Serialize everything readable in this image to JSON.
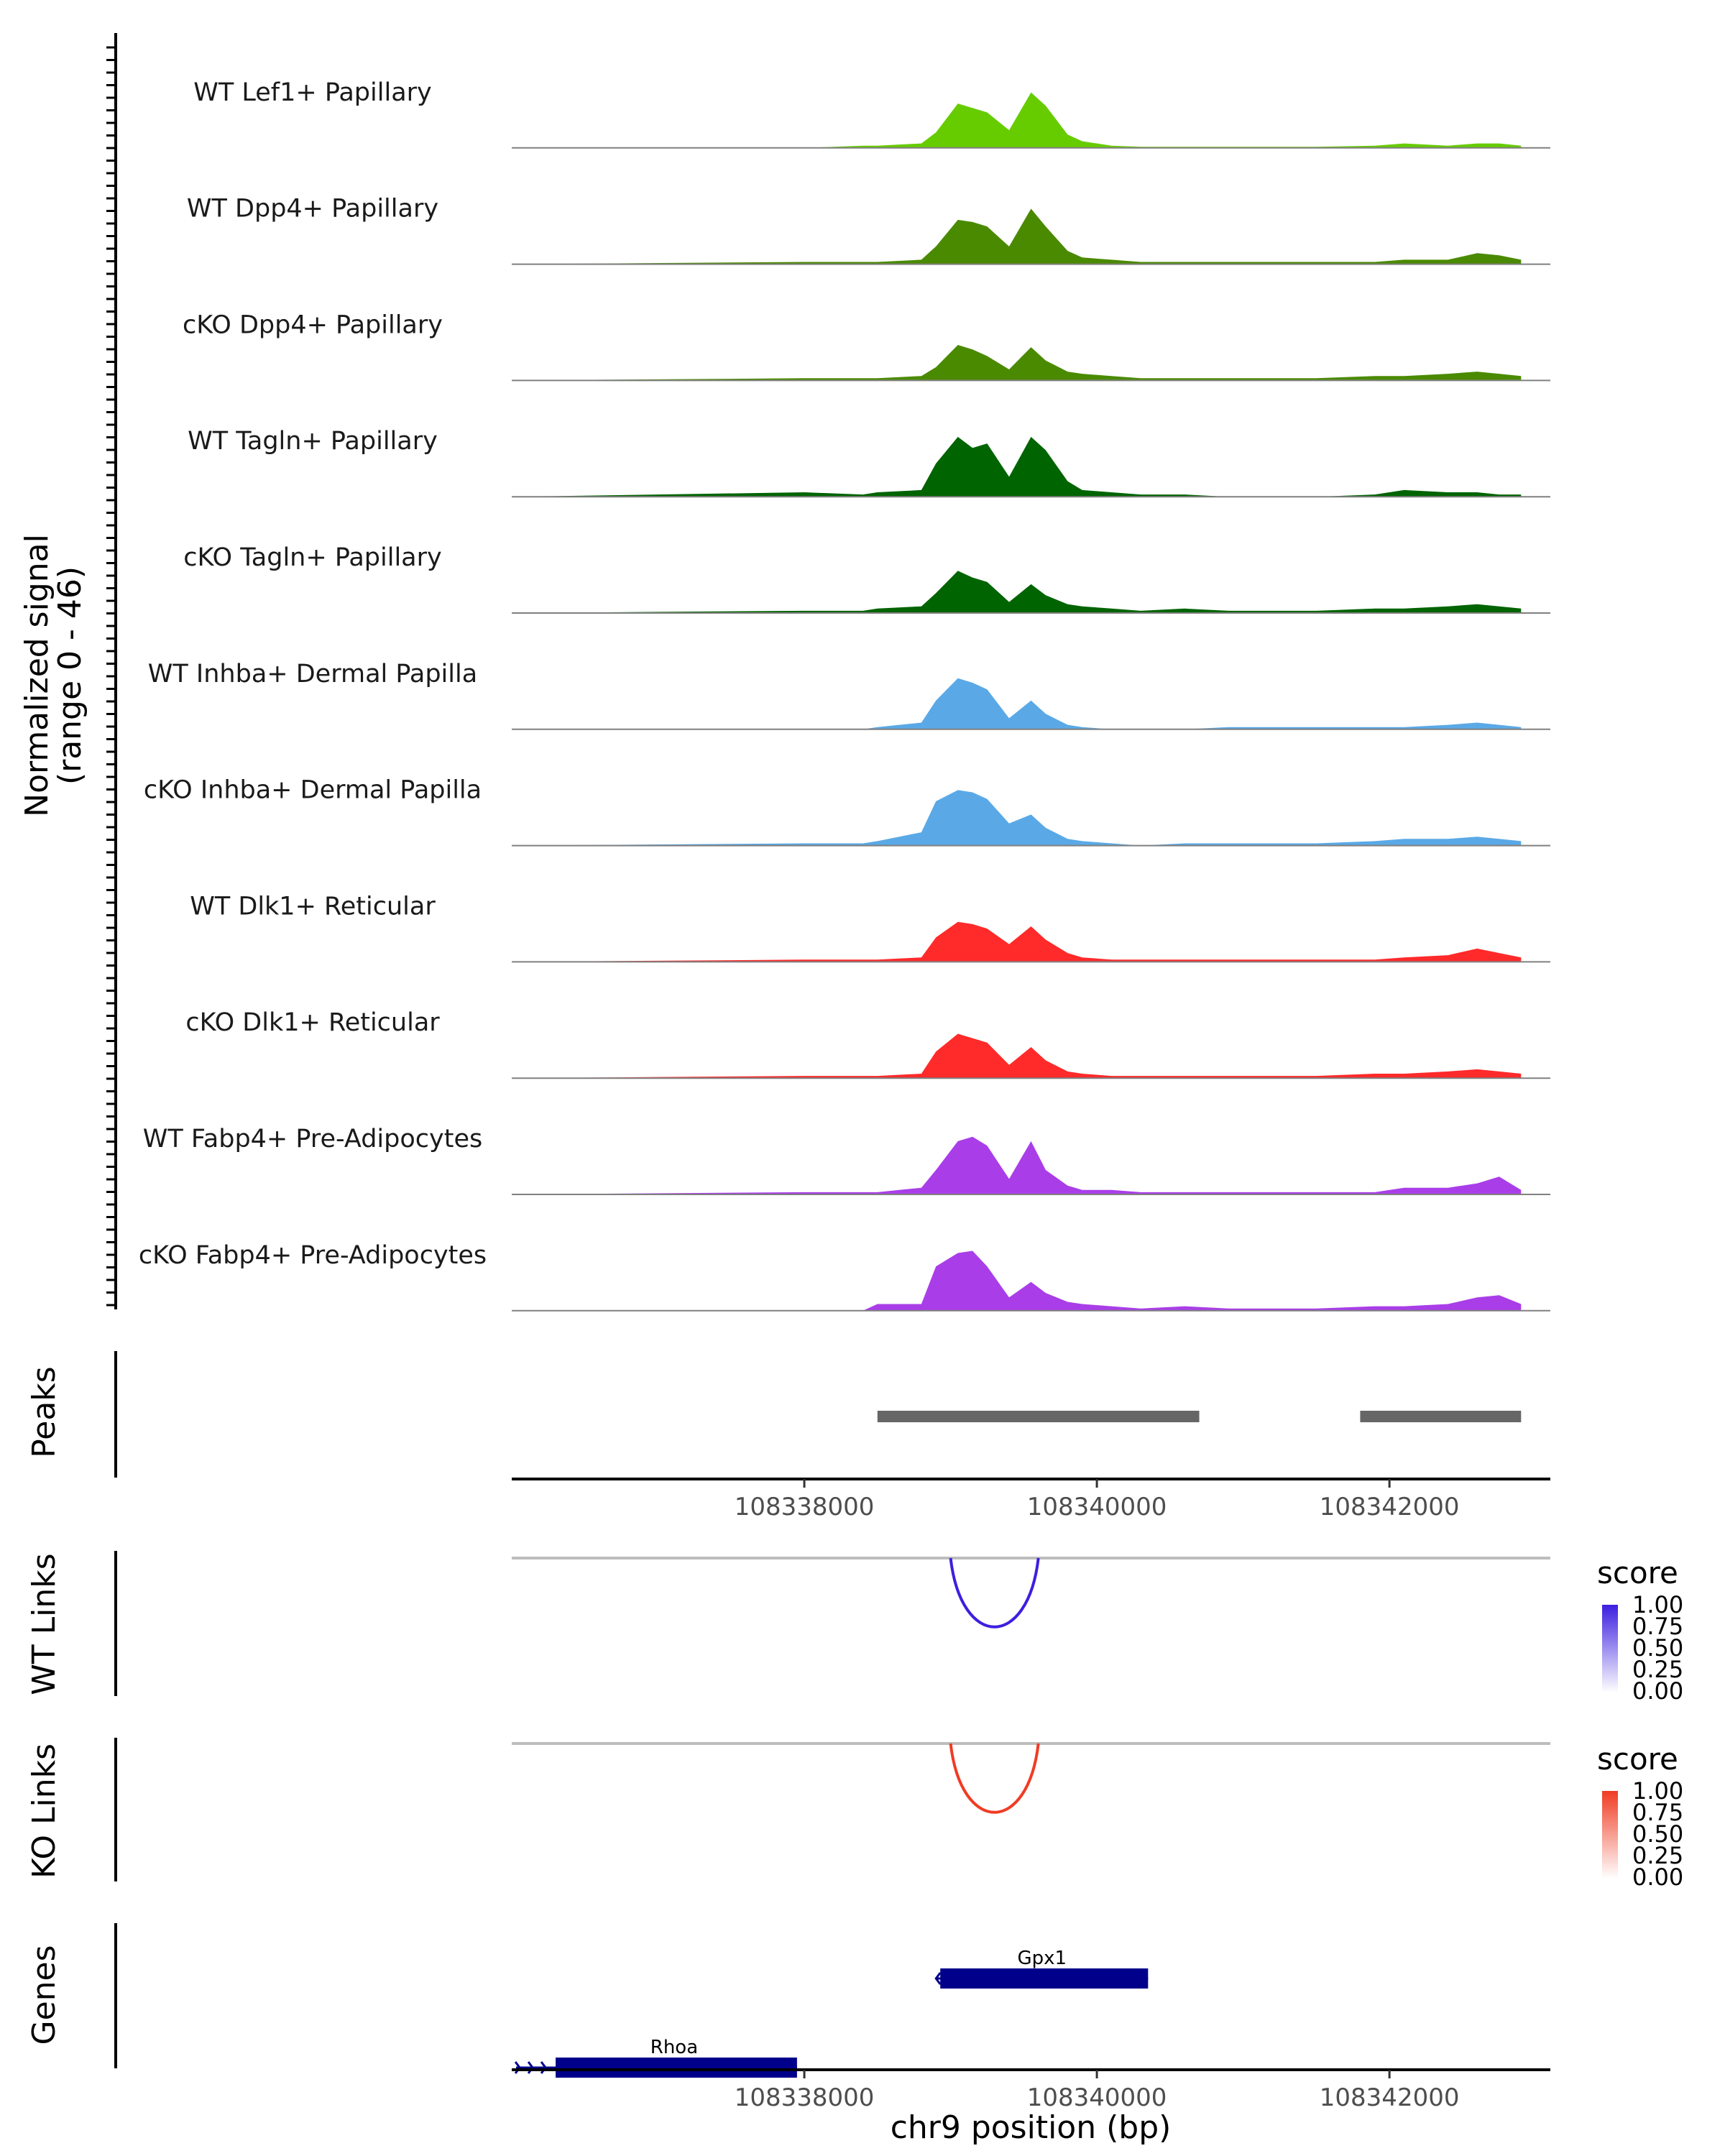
{
  "chart_data": {
    "type": "area",
    "y_axis_title": [
      "Normalized signal",
      "(range 0 - 46)"
    ],
    "ylim": [
      0,
      46
    ],
    "xlim": [
      108336000,
      108343100
    ],
    "xlabel": "chr9 position (bp)",
    "x_ticks": [
      108338000,
      108340000,
      108342000
    ],
    "x_tick_labels": [
      "108338000",
      "108340000",
      "108342000"
    ],
    "tracks": [
      {
        "name": "WT Lef1+ Papillary",
        "color": "#66cc00"
      },
      {
        "name": "WT Dpp4+ Papillary",
        "color": "#4a8a00"
      },
      {
        "name": "cKO Dpp4+ Papillary",
        "color": "#4a8a00"
      },
      {
        "name": "WT Tagln+ Papillary",
        "color": "#006400"
      },
      {
        "name": "cKO Tagln+ Papillary",
        "color": "#006400"
      },
      {
        "name": "WT Inhba+ Dermal Papilla",
        "color": "#5aa9e6"
      },
      {
        "name": "cKO Inhba+ Dermal Papilla",
        "color": "#5aa9e6"
      },
      {
        "name": "WT Dlk1+ Reticular",
        "color": "#ff2a2a"
      },
      {
        "name": "cKO Dlk1+ Reticular",
        "color": "#ff2a2a"
      },
      {
        "name": "WT Fabp4+ Pre-Adipocytes",
        "color": "#a93ee8"
      },
      {
        "name": "cKO Fabp4+ Pre-Adipocytes",
        "color": "#a93ee8"
      }
    ],
    "signal_x": [
      108336000,
      108338000,
      108338400,
      108338500,
      108338800,
      108338900,
      108339050,
      108339150,
      108339250,
      108339400,
      108339550,
      108339650,
      108339800,
      108339900,
      108340100,
      108340300,
      108340600,
      108340900,
      108341500,
      108341900,
      108342100,
      108342400,
      108342600,
      108342750,
      108342900
    ],
    "signal_y": [
      [
        0,
        0,
        1,
        1,
        2,
        7,
        20,
        18,
        16,
        8,
        25,
        19,
        6,
        3,
        1,
        0.5,
        0.5,
        0.5,
        0.5,
        1,
        2,
        1,
        2,
        2,
        1
      ],
      [
        0,
        1,
        1,
        1,
        2,
        8,
        20,
        19,
        17,
        8,
        25,
        17,
        6,
        3,
        2,
        1,
        1,
        1,
        1,
        1,
        2,
        2,
        5,
        4,
        2
      ],
      [
        0,
        1,
        1,
        1,
        2,
        6,
        16,
        14,
        11,
        5,
        15,
        9,
        4,
        3,
        2,
        1,
        1,
        1,
        1,
        2,
        2,
        3,
        4,
        3,
        2
      ],
      [
        0,
        2,
        1,
        2,
        3,
        15,
        27,
        22,
        24,
        9,
        27,
        21,
        7,
        3,
        2,
        1,
        1,
        0,
        0,
        1,
        3,
        2,
        2,
        1,
        1
      ],
      [
        0,
        1,
        1,
        2,
        3,
        9,
        19,
        16,
        14,
        5,
        13,
        8,
        4,
        3,
        2,
        1,
        2,
        1,
        1,
        2,
        2,
        3,
        4,
        3,
        2
      ],
      [
        0,
        0,
        0,
        1,
        3,
        13,
        23,
        21,
        18,
        5,
        13,
        7,
        2,
        1,
        0,
        0,
        0,
        1,
        1,
        1,
        1,
        2,
        3,
        2,
        1
      ],
      [
        0,
        1,
        1,
        2,
        6,
        20,
        25,
        24,
        21,
        10,
        14,
        8,
        3,
        2,
        1,
        0,
        1,
        1,
        1,
        2,
        3,
        3,
        4,
        3,
        2
      ],
      [
        0,
        1,
        1,
        1,
        2,
        11,
        18,
        17,
        15,
        8,
        16,
        10,
        4,
        2,
        1,
        1,
        1,
        1,
        1,
        1,
        2,
        3,
        6,
        4,
        2
      ],
      [
        0,
        1,
        1,
        1,
        2,
        12,
        20,
        18,
        16,
        6,
        14,
        8,
        3,
        2,
        1,
        1,
        1,
        1,
        1,
        2,
        2,
        3,
        4,
        3,
        2
      ],
      [
        0,
        1,
        1,
        1,
        3,
        11,
        24,
        26,
        22,
        7,
        24,
        11,
        4,
        2,
        2,
        1,
        1,
        1,
        1,
        1,
        3,
        3,
        5,
        8,
        2
      ],
      [
        0,
        0,
        0,
        3,
        3,
        20,
        26,
        27,
        20,
        6,
        13,
        8,
        4,
        3,
        2,
        1,
        2,
        1,
        1,
        2,
        2,
        3,
        6,
        7,
        3
      ]
    ],
    "peaks_title": "Peaks",
    "peaks": [
      [
        108338500,
        108340700
      ],
      [
        108341800,
        108342900
      ]
    ],
    "wt_links": {
      "title": "WT Links",
      "start": 108339000,
      "end": 108339600,
      "score": 1.0,
      "color": "#3c1fe0"
    },
    "ko_links": {
      "title": "KO Links",
      "start": 108339000,
      "end": 108339600,
      "score": 1.0,
      "color": "#f03c24"
    },
    "legend_title": "score",
    "legend_ticks": [
      "1.00",
      "0.75",
      "0.50",
      "0.25",
      "0.00"
    ],
    "legend_colors": {
      "wt": "#3c1fe0",
      "ko": "#f03c24"
    },
    "genes_title": "Genes",
    "genes": [
      {
        "name": "Gpx1",
        "start": 108338900,
        "end": 108340350,
        "row": 0,
        "strand": "-"
      },
      {
        "name": "Rhoa",
        "start": 108336300,
        "end": 108337950,
        "row": 1,
        "strand": "+"
      }
    ],
    "gene_color": "#00008b"
  }
}
